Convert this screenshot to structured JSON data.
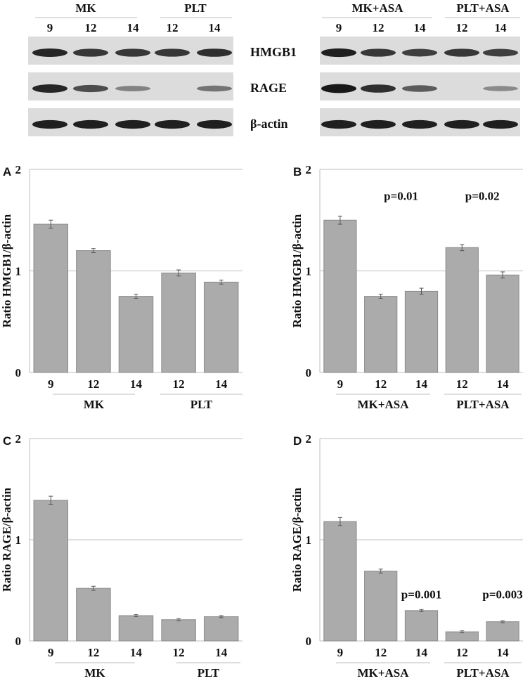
{
  "blot": {
    "left": {
      "group_labels": [
        "MK",
        "PLT"
      ],
      "lane_labels": [
        "9",
        "12",
        "14",
        "12",
        "14"
      ],
      "lane_intensity": {
        "HMGB1": [
          0.85,
          0.75,
          0.75,
          0.75,
          0.8
        ],
        "RAGE": [
          0.85,
          0.6,
          0.25,
          0.0,
          0.35
        ],
        "beta_actin": [
          0.9,
          0.9,
          0.9,
          0.9,
          0.9
        ]
      }
    },
    "right": {
      "group_labels": [
        "MK+ASA",
        "PLT+ASA"
      ],
      "lane_labels": [
        "9",
        "12",
        "14",
        "12",
        "14"
      ],
      "lane_intensity": {
        "HMGB1": [
          0.9,
          0.75,
          0.7,
          0.75,
          0.7
        ],
        "RAGE": [
          0.95,
          0.8,
          0.5,
          0.0,
          0.2
        ],
        "beta_actin": [
          0.9,
          0.9,
          0.9,
          0.9,
          0.9
        ]
      }
    },
    "row_labels": [
      "HMGB1",
      "RAGE",
      "β-actin"
    ]
  },
  "colors": {
    "bar": "#ababab",
    "bar_edge": "#8a8a8a",
    "gridline": "#bdbdbd",
    "blot_bg": "#dcdcdc",
    "band": "#101010"
  },
  "chart_data": [
    {
      "type": "bar",
      "panel": "A",
      "categories": [
        "9",
        "12",
        "14",
        "12",
        "14"
      ],
      "groups": [
        "MK",
        "PLT"
      ],
      "values": [
        1.46,
        1.2,
        0.75,
        0.98,
        0.89
      ],
      "errors": [
        0.04,
        0.02,
        0.02,
        0.03,
        0.02
      ],
      "ylabel": "Ratio HMGB1/β-actin",
      "ylim": [
        0,
        2
      ],
      "yticks": [
        "0",
        "1",
        "2"
      ],
      "grid": true,
      "annotations": []
    },
    {
      "type": "bar",
      "panel": "B",
      "categories": [
        "9",
        "12",
        "14",
        "12",
        "14"
      ],
      "groups": [
        "MK+ASA",
        "PLT+ASA"
      ],
      "values": [
        1.5,
        0.75,
        0.8,
        1.23,
        0.96
      ],
      "errors": [
        0.04,
        0.02,
        0.03,
        0.03,
        0.03
      ],
      "ylabel": "Ratio HMGB1/β-actin",
      "ylim": [
        0,
        2
      ],
      "yticks": [
        "0",
        "1",
        "2"
      ],
      "grid": true,
      "annotations": [
        {
          "text": "p=0.01",
          "y": 1.7,
          "over_categories": [
            1,
            2
          ]
        },
        {
          "text": "p=0.02",
          "y": 1.7,
          "over_categories": [
            3,
            4
          ]
        }
      ]
    },
    {
      "type": "bar",
      "panel": "C",
      "categories": [
        "9",
        "12",
        "14",
        "12",
        "14"
      ],
      "groups": [
        "MK",
        "PLT"
      ],
      "values": [
        1.39,
        0.52,
        0.25,
        0.21,
        0.24
      ],
      "errors": [
        0.04,
        0.02,
        0.01,
        0.01,
        0.01
      ],
      "ylabel": "Ratio RAGE/β-actin",
      "ylim": [
        0,
        2
      ],
      "yticks": [
        "0",
        "1",
        "2"
      ],
      "grid": true,
      "annotations": []
    },
    {
      "type": "bar",
      "panel": "D",
      "categories": [
        "9",
        "12",
        "14",
        "12",
        "14"
      ],
      "groups": [
        "MK+ASA",
        "PLT+ASA"
      ],
      "values": [
        1.18,
        0.69,
        0.3,
        0.09,
        0.19
      ],
      "errors": [
        0.04,
        0.02,
        0.01,
        0.01,
        0.01
      ],
      "ylabel": "Ratio RAGE/β-actin",
      "ylim": [
        0,
        2
      ],
      "yticks": [
        "0",
        "1",
        "2"
      ],
      "grid": true,
      "annotations": [
        {
          "text": "p=0.001",
          "y": 0.42,
          "over_categories": [
            2
          ]
        },
        {
          "text": "p=0.003",
          "y": 0.42,
          "over_categories": [
            4
          ]
        }
      ]
    }
  ]
}
